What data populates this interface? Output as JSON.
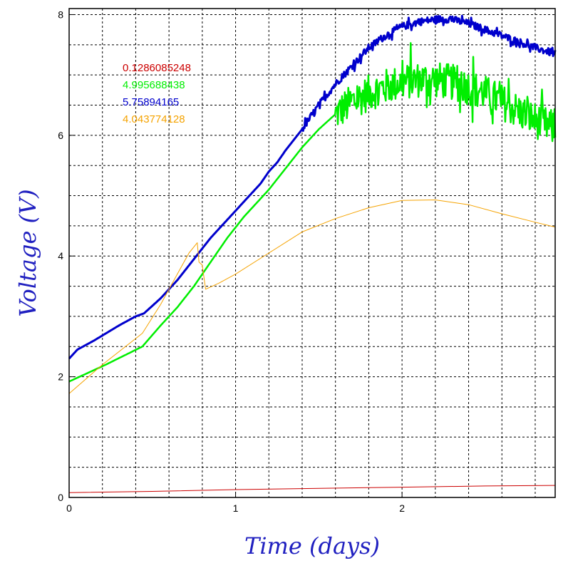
{
  "chart_data": {
    "type": "line",
    "xlabel": "Time (days)",
    "ylabel": "Voltage (V)",
    "xlim": [
      0,
      2.92
    ],
    "ylim": [
      0,
      8.1
    ],
    "grid": true,
    "legend_position": "top-left",
    "x_ticks": [
      0,
      1,
      2
    ],
    "x_tick_labels": [
      "0",
      "1",
      "2"
    ],
    "y_ticks": [
      0,
      2,
      4,
      6,
      8
    ],
    "y_tick_labels": [
      "0",
      "2",
      "4",
      "6",
      "8"
    ],
    "x_minor_grid": [
      0.2,
      0.4,
      0.6,
      0.8,
      1.2,
      1.4,
      1.6,
      1.8,
      2.2,
      2.4,
      2.6,
      2.8
    ],
    "y_minor_grid": [
      0.5,
      1,
      1.5,
      2.5,
      3,
      3.5,
      4.5,
      5,
      5.5,
      6.5,
      7,
      7.5
    ],
    "series": [
      {
        "name": "0.1286085248",
        "color": "#cc0000",
        "width": 1,
        "x": [
          0,
          0.5,
          1.0,
          1.5,
          2.0,
          2.5,
          2.92
        ],
        "y": [
          0.08,
          0.1,
          0.13,
          0.15,
          0.17,
          0.19,
          0.2
        ]
      },
      {
        "name": "4.995688438",
        "color": "#00ee00",
        "width": 2.5,
        "noise": [
          [
            1.6,
            2.92,
            0.3
          ]
        ],
        "x": [
          0,
          0.22,
          0.44,
          0.55,
          0.65,
          0.75,
          0.85,
          0.95,
          1.05,
          1.2,
          1.3,
          1.4,
          1.5,
          1.6,
          1.7,
          1.8,
          1.9,
          2.0,
          2.1,
          2.2,
          2.3,
          2.4,
          2.5,
          2.6,
          2.7,
          2.8,
          2.92
        ],
        "y": [
          1.92,
          2.2,
          2.5,
          2.85,
          3.15,
          3.5,
          3.9,
          4.3,
          4.65,
          5.1,
          5.45,
          5.8,
          6.1,
          6.35,
          6.55,
          6.7,
          6.8,
          6.88,
          6.92,
          6.92,
          6.88,
          6.8,
          6.7,
          6.55,
          6.4,
          6.25,
          6.1
        ]
      },
      {
        "name": "5.75894165",
        "color": "#0000cc",
        "width": 3,
        "noise": [
          [
            1.4,
            2.92,
            0.06
          ]
        ],
        "x": [
          0,
          0.05,
          0.15,
          0.3,
          0.4,
          0.45,
          0.55,
          0.65,
          0.75,
          0.85,
          0.95,
          1.05,
          1.15,
          1.2,
          1.25,
          1.3,
          1.4,
          1.5,
          1.6,
          1.7,
          1.8,
          1.9,
          2.0,
          2.1,
          2.2,
          2.25,
          2.3,
          2.4,
          2.5,
          2.6,
          2.7,
          2.8,
          2.92
        ],
        "y": [
          2.3,
          2.45,
          2.6,
          2.85,
          3.0,
          3.05,
          3.3,
          3.6,
          3.95,
          4.3,
          4.6,
          4.9,
          5.2,
          5.4,
          5.55,
          5.75,
          6.1,
          6.5,
          6.85,
          7.15,
          7.45,
          7.65,
          7.8,
          7.88,
          7.92,
          7.93,
          7.92,
          7.85,
          7.75,
          7.65,
          7.55,
          7.45,
          7.35
        ]
      },
      {
        "name": "4.043774128",
        "color": "#f5a300",
        "width": 1,
        "x": [
          0,
          0.2,
          0.44,
          0.55,
          0.65,
          0.72,
          0.77,
          0.78,
          0.8,
          0.82,
          0.9,
          1.0,
          1.2,
          1.4,
          1.6,
          1.8,
          2.0,
          2.2,
          2.4,
          2.6,
          2.8,
          2.92
        ],
        "y": [
          1.72,
          2.2,
          2.72,
          3.2,
          3.7,
          4.05,
          4.22,
          3.9,
          3.85,
          3.45,
          3.55,
          3.7,
          4.05,
          4.4,
          4.62,
          4.8,
          4.92,
          4.93,
          4.85,
          4.7,
          4.56,
          4.48
        ]
      }
    ]
  }
}
